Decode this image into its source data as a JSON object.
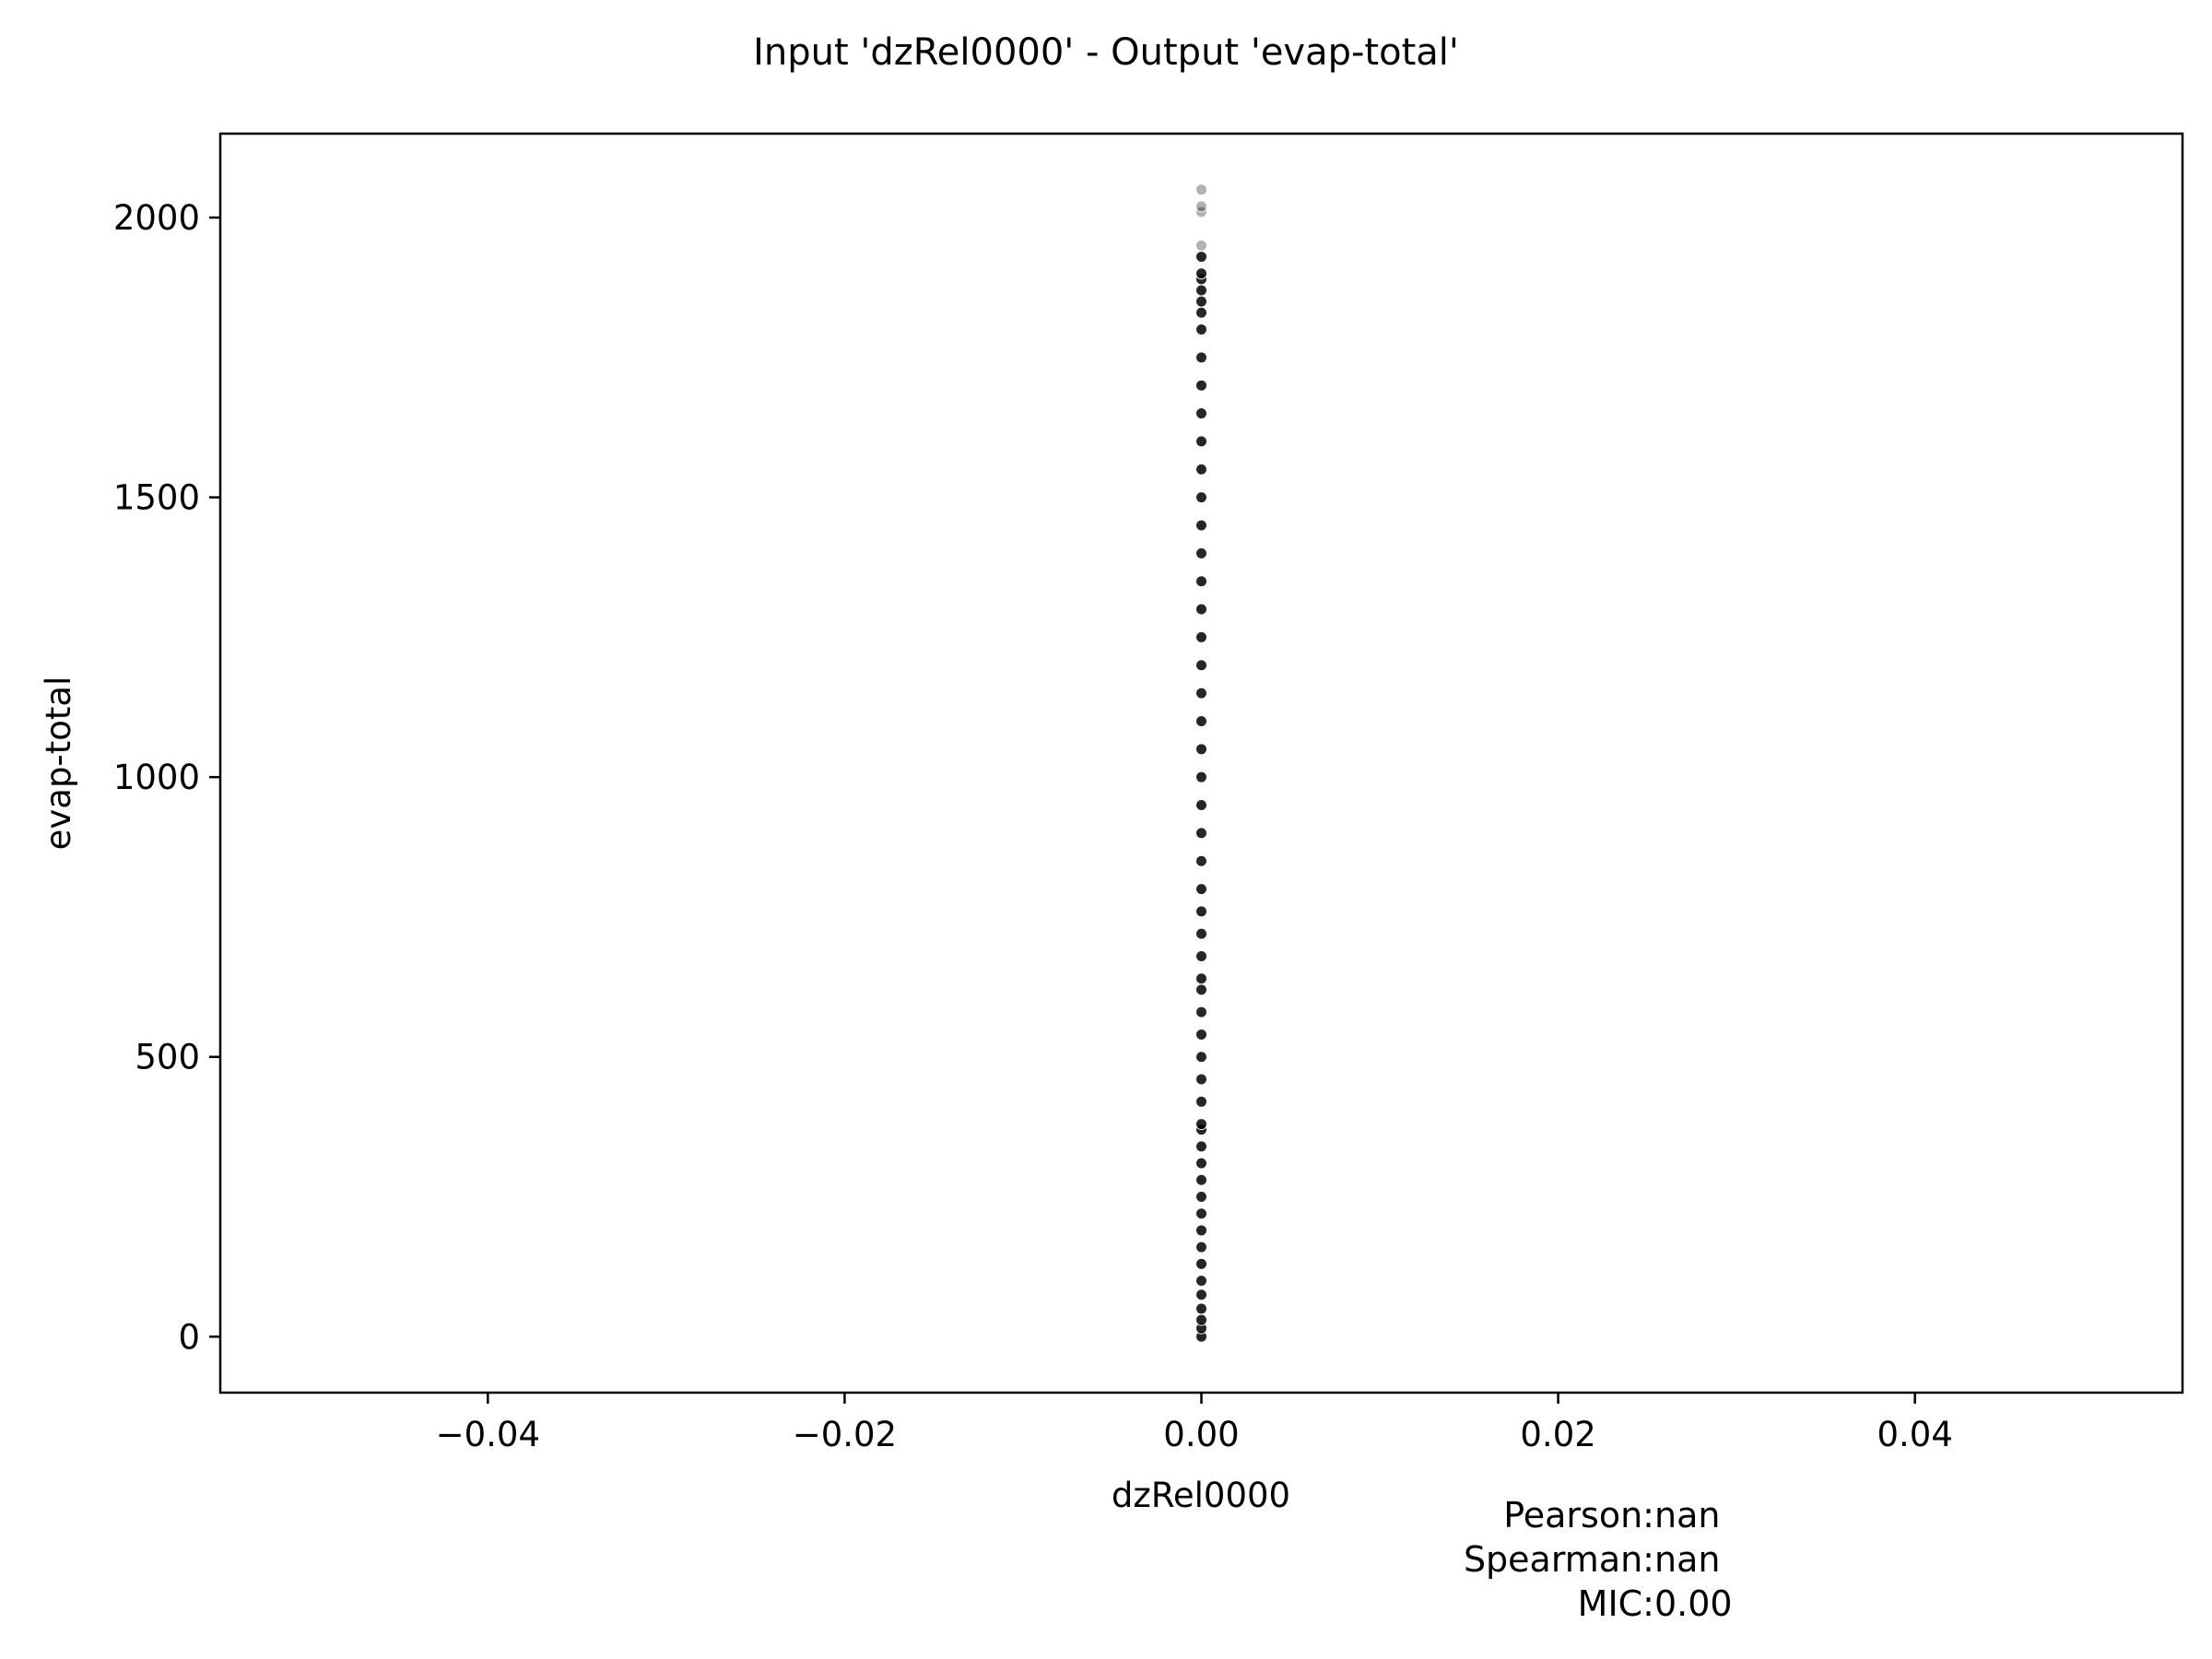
{
  "chart_data": {
    "type": "scatter",
    "title": "Input 'dzRel0000' - Output 'evap-total'",
    "xlabel": "dzRel0000",
    "ylabel": "evap-total",
    "xlim": [
      -0.055,
      0.055
    ],
    "ylim": [
      -100,
      2150
    ],
    "grid": false,
    "x_ticks": [
      -0.04,
      -0.02,
      0.0,
      0.02,
      0.04
    ],
    "x_tick_labels": [
      "−0.04",
      "−0.02",
      "0.00",
      "0.02",
      "0.04"
    ],
    "y_ticks": [
      0,
      500,
      1000,
      1500,
      2000
    ],
    "y_tick_labels": [
      "0",
      "500",
      "1000",
      "1500",
      "2000"
    ],
    "point_color": "#000000",
    "series": [
      {
        "x": [
          0,
          0,
          0,
          0,
          0,
          0,
          0,
          0,
          0,
          0,
          0,
          0,
          0,
          0,
          0,
          0,
          0,
          0,
          0,
          0,
          0,
          0,
          0,
          0,
          0,
          0,
          0,
          0,
          0,
          0,
          0,
          0,
          0,
          0,
          0,
          0,
          0,
          0,
          0,
          0,
          0,
          0,
          0,
          0,
          0,
          0,
          0,
          0,
          0,
          0,
          0,
          0,
          0,
          0,
          0,
          0,
          0
        ],
        "y": [
          0,
          15,
          30,
          50,
          75,
          100,
          130,
          160,
          190,
          220,
          250,
          280,
          310,
          340,
          370,
          380,
          420,
          460,
          500,
          540,
          580,
          620,
          640,
          680,
          720,
          760,
          800,
          850,
          900,
          950,
          1000,
          1050,
          1100,
          1150,
          1200,
          1250,
          1300,
          1350,
          1400,
          1450,
          1500,
          1550,
          1600,
          1650,
          1700,
          1750,
          1800,
          1830,
          1850,
          1870,
          1890,
          1900,
          1930,
          1950,
          2010,
          2020,
          2050
        ]
      }
    ],
    "stats": [
      {
        "label": "Pearson:",
        "value": "nan"
      },
      {
        "label": "Spearman:",
        "value": "nan"
      },
      {
        "label": "MIC:",
        "value": "0.00"
      }
    ]
  }
}
